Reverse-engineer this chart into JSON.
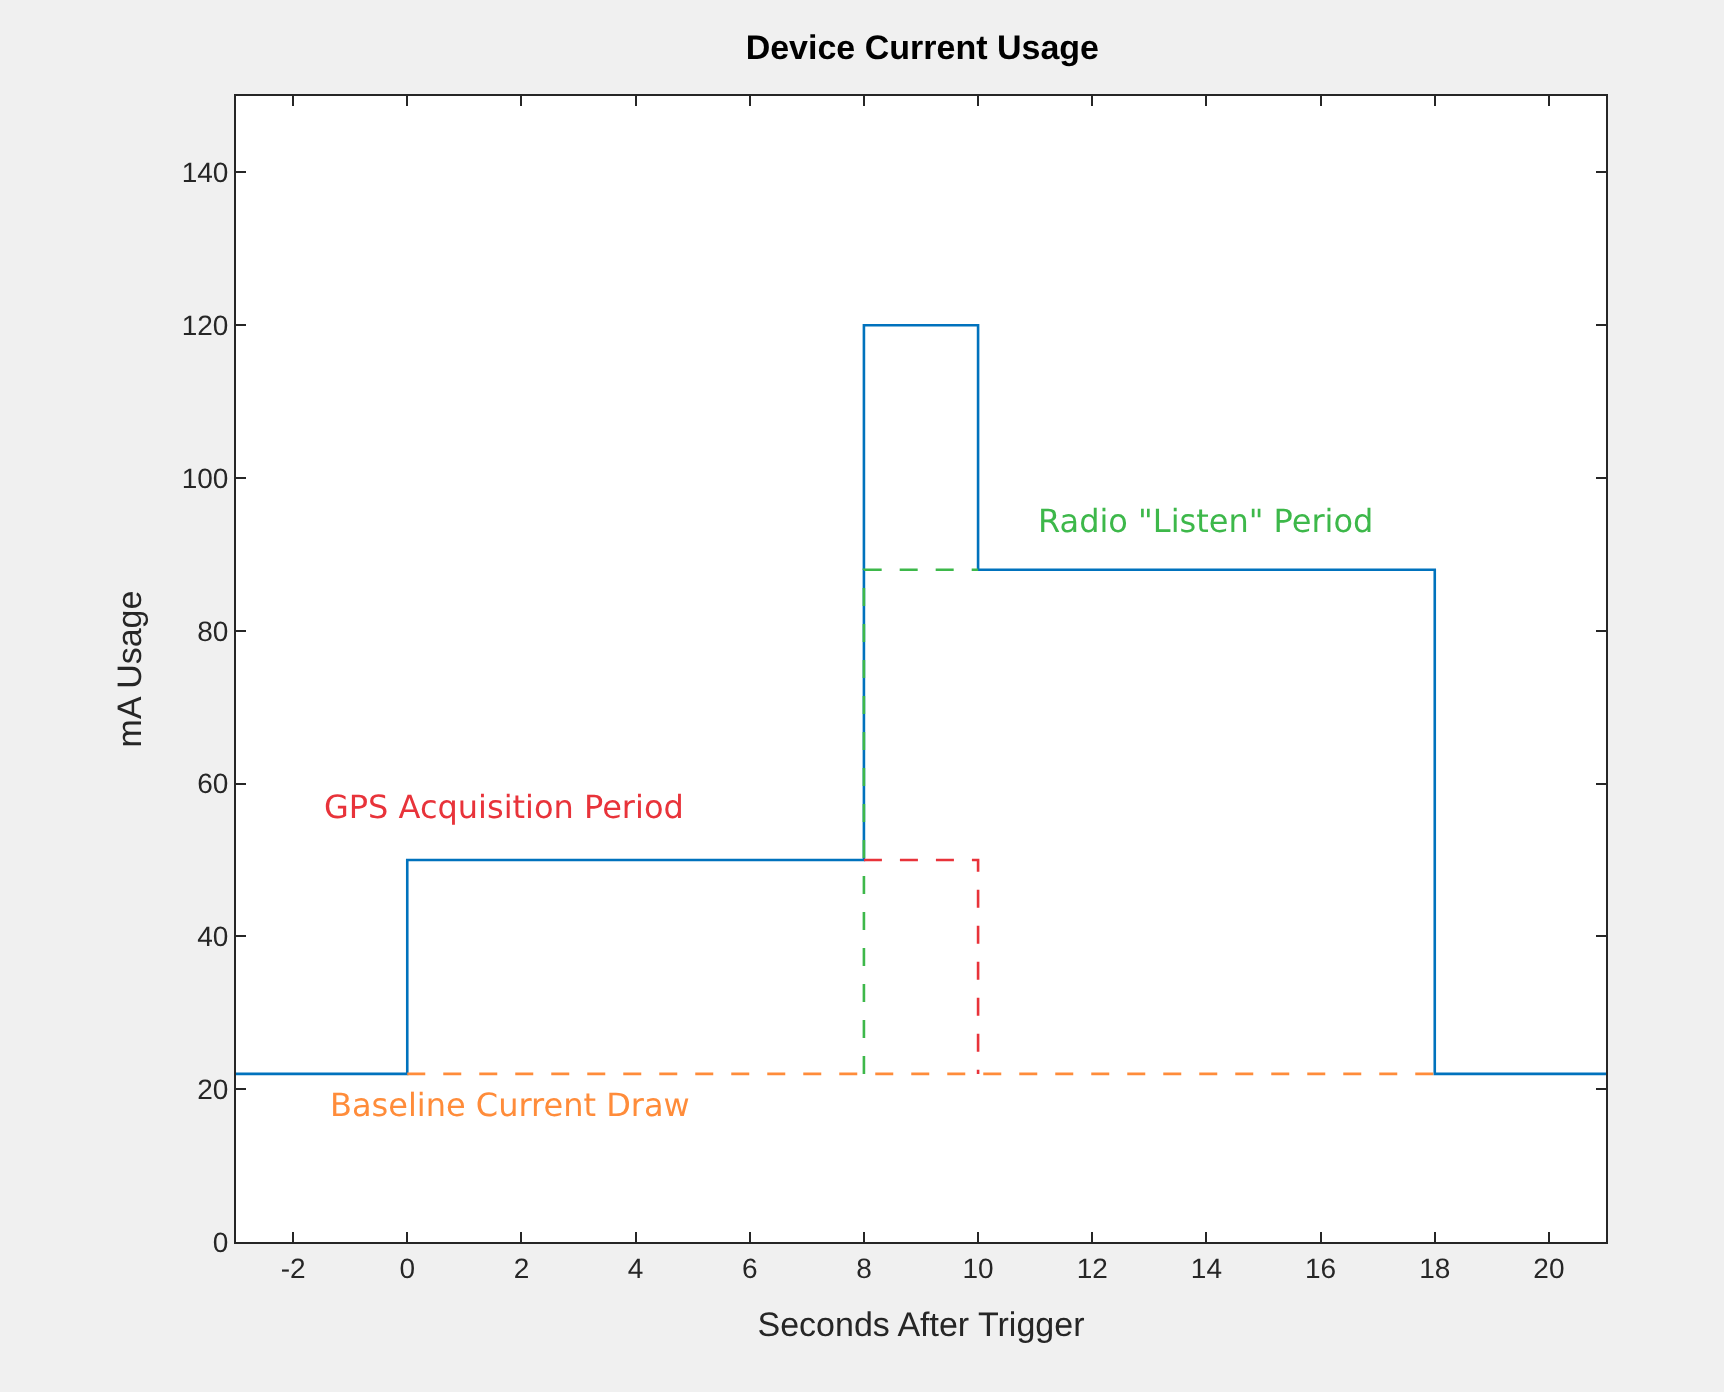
{
  "chart_data": {
    "type": "line",
    "title": "Device Current Usage",
    "xlabel": "Seconds After Trigger",
    "ylabel": "mA Usage",
    "xlim": [
      -3,
      21
    ],
    "ylim": [
      0,
      150
    ],
    "xticks": [
      -2,
      0,
      2,
      4,
      6,
      8,
      10,
      12,
      14,
      16,
      18,
      20
    ],
    "yticks": [
      0,
      20,
      40,
      60,
      80,
      100,
      120,
      140
    ],
    "marker": "none",
    "line_style": "solid",
    "series": [
      {
        "color": "#0072bd",
        "x": [
          -3,
          0,
          0,
          8,
          8,
          10,
          10,
          18,
          18,
          21
        ],
        "values": [
          22,
          22,
          50,
          50,
          120,
          120,
          88,
          88,
          22,
          22
        ]
      },
      {
        "color": "#ff8c3a",
        "line_style": "dashed",
        "x": [
          0,
          18
        ],
        "values": [
          22,
          22
        ]
      },
      {
        "color": "#e8333a",
        "line_style": "dashed",
        "x": [
          8,
          10,
          10
        ],
        "values": [
          50,
          50,
          22
        ]
      },
      {
        "color": "#3db84a",
        "line_style": "dashed",
        "x": [
          8,
          8,
          10
        ],
        "values": [
          22,
          88,
          88
        ]
      }
    ],
    "annotations": [
      "Baseline Current Draw",
      "GPS Acquisition Period",
      "Radio \"Listen\" Period"
    ]
  }
}
